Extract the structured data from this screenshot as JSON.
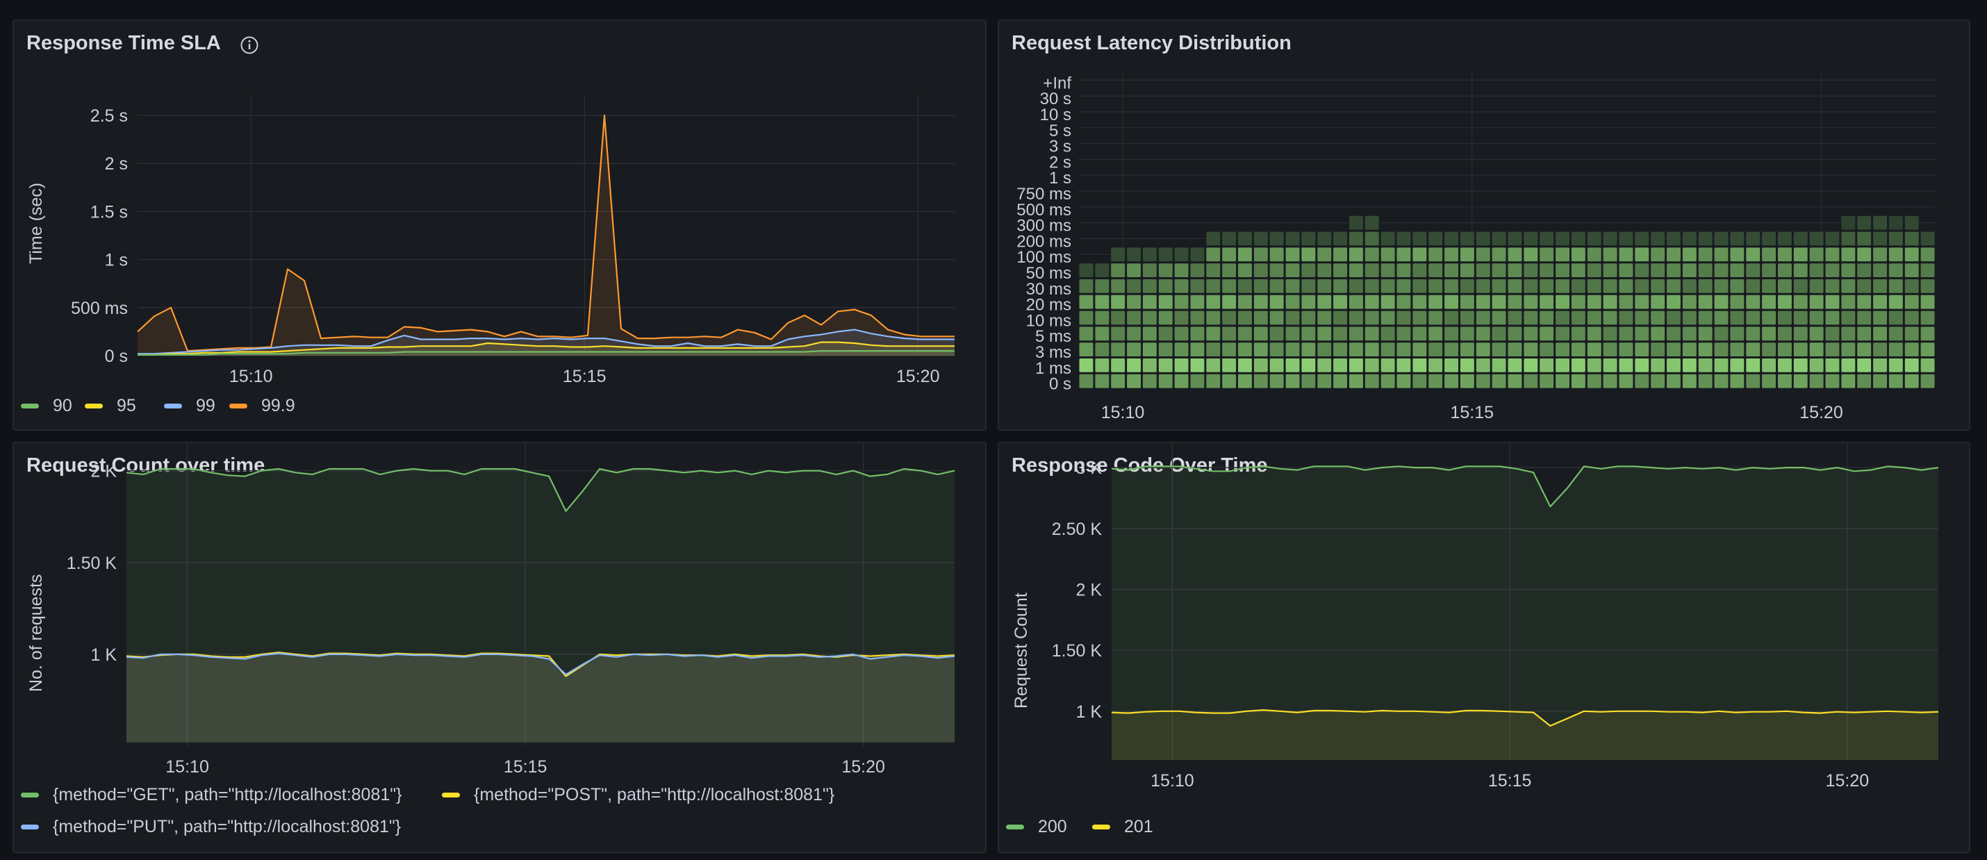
{
  "colors": {
    "green": "#73bf69",
    "yellow": "#fade2a",
    "blue": "#8ab8ff",
    "orange": "#ff9830",
    "grid": "#2b2d33",
    "text": "#ccccdc"
  },
  "panels": {
    "sla": {
      "title": "Response Time SLA",
      "info_icon": "info-circle-icon",
      "ylabel": "Time (sec)",
      "legend": [
        {
          "label": "90",
          "color": "#73bf69"
        },
        {
          "label": "95",
          "color": "#fade2a"
        },
        {
          "label": "99",
          "color": "#8ab8ff"
        },
        {
          "label": "99.9",
          "color": "#ff9830"
        }
      ]
    },
    "latency": {
      "title": "Request Latency Distribution"
    },
    "count": {
      "title": "Request Count over time",
      "ylabel": "No. of requests",
      "legend": [
        {
          "label": "{method=\"GET\", path=\"http://localhost:8081\"}",
          "color": "#73bf69"
        },
        {
          "label": "{method=\"POST\", path=\"http://localhost:8081\"}",
          "color": "#fade2a"
        },
        {
          "label": "{method=\"PUT\", path=\"http://localhost:8081\"}",
          "color": "#8ab8ff"
        }
      ]
    },
    "codes": {
      "title": "Response Code Over Time",
      "ylabel": "Request Count",
      "legend": [
        {
          "label": "200",
          "color": "#73bf69"
        },
        {
          "label": "201",
          "color": "#fade2a"
        }
      ]
    }
  },
  "chart_data": [
    {
      "type": "line",
      "title": "Response Time SLA",
      "ylabel": "Time (sec)",
      "x_ticks": [
        "15:10",
        "15:15",
        "15:20"
      ],
      "y_ticks": [
        "0 s",
        "500 ms",
        "1 s",
        "1.5 s",
        "2 s",
        "2.5 s"
      ],
      "ylim": [
        0,
        2.5
      ],
      "x": [
        0,
        0.25,
        0.5,
        0.75,
        1,
        1.25,
        1.5,
        1.75,
        2,
        2.25,
        2.5,
        2.75,
        3,
        3.25,
        3.5,
        3.75,
        4,
        4.25,
        4.5,
        4.75,
        5,
        5.25,
        5.5,
        5.75,
        6,
        6.25,
        6.5,
        6.75,
        7,
        7.25,
        7.5,
        7.75,
        8,
        8.25,
        8.5,
        8.75,
        9,
        9.25,
        9.5,
        9.75,
        10,
        10.25,
        10.5,
        10.75,
        11,
        11.25,
        11.5,
        11.75,
        12,
        12.25
      ],
      "series": [
        {
          "name": "99.9",
          "values": [
            0.25,
            0.41,
            0.5,
            0.05,
            0.06,
            0.07,
            0.08,
            0.08,
            0.09,
            0.9,
            0.78,
            0.18,
            0.19,
            0.2,
            0.19,
            0.19,
            0.3,
            0.29,
            0.25,
            0.26,
            0.27,
            0.25,
            0.2,
            0.25,
            0.2,
            0.2,
            0.19,
            0.21,
            2.5,
            0.28,
            0.18,
            0.18,
            0.19,
            0.19,
            0.2,
            0.19,
            0.27,
            0.24,
            0.17,
            0.34,
            0.42,
            0.32,
            0.46,
            0.48,
            0.42,
            0.27,
            0.22,
            0.2,
            0.2,
            0.2
          ]
        },
        {
          "name": "99",
          "values": [
            0.02,
            0.02,
            0.03,
            0.04,
            0.05,
            0.06,
            0.06,
            0.07,
            0.08,
            0.1,
            0.11,
            0.11,
            0.11,
            0.1,
            0.1,
            0.16,
            0.21,
            0.17,
            0.17,
            0.17,
            0.18,
            0.18,
            0.17,
            0.18,
            0.17,
            0.18,
            0.17,
            0.18,
            0.18,
            0.15,
            0.12,
            0.1,
            0.1,
            0.13,
            0.1,
            0.1,
            0.12,
            0.1,
            0.1,
            0.17,
            0.2,
            0.22,
            0.25,
            0.27,
            0.23,
            0.2,
            0.18,
            0.17,
            0.17,
            0.17
          ]
        },
        {
          "name": "95",
          "values": [
            0.01,
            0.01,
            0.02,
            0.02,
            0.03,
            0.03,
            0.04,
            0.04,
            0.04,
            0.05,
            0.06,
            0.07,
            0.08,
            0.08,
            0.08,
            0.09,
            0.09,
            0.1,
            0.1,
            0.1,
            0.1,
            0.13,
            0.12,
            0.11,
            0.1,
            0.1,
            0.09,
            0.09,
            0.1,
            0.09,
            0.08,
            0.08,
            0.08,
            0.08,
            0.08,
            0.08,
            0.08,
            0.08,
            0.08,
            0.09,
            0.1,
            0.14,
            0.14,
            0.13,
            0.11,
            0.1,
            0.1,
            0.1,
            0.1,
            0.1
          ]
        },
        {
          "name": "90",
          "values": [
            0.01,
            0.01,
            0.01,
            0.01,
            0.01,
            0.02,
            0.02,
            0.02,
            0.02,
            0.02,
            0.03,
            0.03,
            0.03,
            0.03,
            0.03,
            0.03,
            0.04,
            0.04,
            0.04,
            0.04,
            0.04,
            0.04,
            0.04,
            0.04,
            0.04,
            0.04,
            0.04,
            0.04,
            0.04,
            0.04,
            0.04,
            0.04,
            0.04,
            0.04,
            0.04,
            0.04,
            0.04,
            0.04,
            0.04,
            0.04,
            0.04,
            0.05,
            0.05,
            0.05,
            0.05,
            0.05,
            0.05,
            0.05,
            0.05,
            0.05
          ]
        }
      ]
    },
    {
      "type": "heatmap",
      "title": "Request Latency Distribution",
      "x_ticks": [
        "15:10",
        "15:15",
        "15:20"
      ],
      "y_buckets": [
        "0 s",
        "1 ms",
        "3 ms",
        "5 ms",
        "10 ms",
        "20 ms",
        "30 ms",
        "50 ms",
        "100 ms",
        "200 ms",
        "300 ms",
        "500 ms",
        "750 ms",
        "1 s",
        "2 s",
        "3 s",
        "5 s",
        "10 s",
        "30 s",
        "+Inf"
      ],
      "columns": 54,
      "row_intensity": [
        0.65,
        0.95,
        0.6,
        0.55,
        0.5,
        0.7,
        0.45,
        0.5,
        0.65,
        0.25,
        0.1,
        0,
        0,
        0,
        0,
        0,
        0,
        0,
        0,
        0
      ],
      "column_start_row_top": [
        7,
        7,
        8,
        8,
        8,
        8,
        8,
        8,
        9,
        9,
        9,
        9,
        9,
        9,
        9,
        9,
        9,
        10,
        10,
        9,
        9,
        9,
        9,
        9,
        9,
        9,
        9,
        9,
        9,
        9,
        9,
        9,
        9,
        9,
        9,
        9,
        9,
        9,
        9,
        9,
        9,
        9,
        9,
        9,
        9,
        9,
        9,
        9,
        10,
        10,
        10,
        10,
        10,
        9
      ]
    },
    {
      "type": "area",
      "title": "Request Count over time",
      "ylabel": "No. of requests",
      "x_ticks": [
        "15:10",
        "15:15",
        "15:20"
      ],
      "y_ticks": [
        "1 K",
        "1.50 K",
        "2 K"
      ],
      "ylim": [
        500,
        2150
      ],
      "x": [
        0,
        0.25,
        0.5,
        0.75,
        1,
        1.25,
        1.5,
        1.75,
        2,
        2.25,
        2.5,
        2.75,
        3,
        3.25,
        3.5,
        3.75,
        4,
        4.25,
        4.5,
        4.75,
        5,
        5.25,
        5.5,
        5.75,
        6,
        6.25,
        6.5,
        6.75,
        7,
        7.25,
        7.5,
        7.75,
        8,
        8.25,
        8.5,
        8.75,
        9,
        9.25,
        9.5,
        9.75,
        10,
        10.25,
        10.5,
        10.75,
        11,
        11.25,
        11.5,
        11.75,
        12,
        12.25
      ],
      "series": [
        {
          "name": "{method=\"GET\", path=\"http://localhost:8081\"}",
          "values": [
            1990,
            1980,
            2010,
            2010,
            2010,
            1990,
            1975,
            1970,
            2000,
            2010,
            1990,
            1980,
            2010,
            2010,
            2010,
            1980,
            2000,
            2010,
            2000,
            2000,
            1980,
            2010,
            2010,
            2010,
            1990,
            1970,
            1780,
            1890,
            2010,
            1990,
            2010,
            2010,
            2000,
            1990,
            2000,
            1990,
            2000,
            1980,
            2000,
            1990,
            2000,
            2000,
            1980,
            2000,
            1970,
            1980,
            2010,
            2000,
            1980,
            2000
          ]
        },
        {
          "name": "{method=\"POST\", path=\"http://localhost:8081\"}",
          "values": [
            990,
            985,
            995,
            1000,
            1000,
            990,
            985,
            985,
            1000,
            1010,
            1000,
            990,
            1005,
            1005,
            1000,
            995,
            1005,
            1000,
            1000,
            995,
            990,
            1005,
            1005,
            1000,
            995,
            990,
            880,
            940,
            1000,
            995,
            1000,
            1000,
            1000,
            995,
            995,
            990,
            1000,
            990,
            995,
            995,
            1000,
            990,
            985,
            995,
            990,
            995,
            1000,
            995,
            990,
            995
          ]
        },
        {
          "name": "{method=\"PUT\", path=\"http://localhost:8081\"}",
          "values": [
            985,
            980,
            1000,
            1000,
            995,
            985,
            980,
            975,
            995,
            1005,
            995,
            985,
            1000,
            1000,
            995,
            990,
            1000,
            995,
            995,
            990,
            985,
            1000,
            1000,
            995,
            990,
            975,
            890,
            945,
            995,
            985,
            1000,
            995,
            1000,
            990,
            995,
            985,
            995,
            980,
            990,
            990,
            995,
            985,
            990,
            1000,
            975,
            985,
            995,
            990,
            980,
            990
          ]
        }
      ]
    },
    {
      "type": "area",
      "title": "Response Code Over Time",
      "ylabel": "Request Count",
      "x_ticks": [
        "15:10",
        "15:15",
        "15:20"
      ],
      "y_ticks": [
        "1 K",
        "1.50 K",
        "2 K",
        "2.50 K",
        "3 K"
      ],
      "ylim": [
        600,
        3200
      ],
      "x": [
        0,
        0.25,
        0.5,
        0.75,
        1,
        1.25,
        1.5,
        1.75,
        2,
        2.25,
        2.5,
        2.75,
        3,
        3.25,
        3.5,
        3.75,
        4,
        4.25,
        4.5,
        4.75,
        5,
        5.25,
        5.5,
        5.75,
        6,
        6.25,
        6.5,
        6.75,
        7,
        7.25,
        7.5,
        7.75,
        8,
        8.25,
        8.5,
        8.75,
        9,
        9.25,
        9.5,
        9.75,
        10,
        10.25,
        10.5,
        10.75,
        11,
        11.25,
        11.5,
        11.75,
        12,
        12.25
      ],
      "series": [
        {
          "name": "200",
          "values": [
            2990,
            2980,
            3010,
            3010,
            3010,
            2990,
            2970,
            2970,
            3000,
            3010,
            2990,
            2980,
            3010,
            3010,
            3010,
            2980,
            3000,
            3010,
            3000,
            3000,
            2980,
            3010,
            3010,
            3010,
            2990,
            2960,
            2680,
            2830,
            3010,
            2990,
            3010,
            3010,
            3000,
            2990,
            3000,
            2990,
            3000,
            2980,
            3000,
            2990,
            3000,
            3000,
            2980,
            3000,
            2970,
            2980,
            3010,
            3000,
            2980,
            3000
          ]
        },
        {
          "name": "201",
          "values": [
            990,
            985,
            995,
            1000,
            1000,
            990,
            985,
            985,
            1000,
            1010,
            1000,
            990,
            1005,
            1005,
            1000,
            995,
            1005,
            1000,
            1000,
            995,
            990,
            1005,
            1005,
            1000,
            995,
            990,
            880,
            940,
            1000,
            995,
            1000,
            1000,
            1000,
            995,
            995,
            990,
            1000,
            990,
            995,
            995,
            1000,
            990,
            985,
            995,
            990,
            995,
            1000,
            995,
            990,
            995
          ]
        }
      ]
    }
  ]
}
